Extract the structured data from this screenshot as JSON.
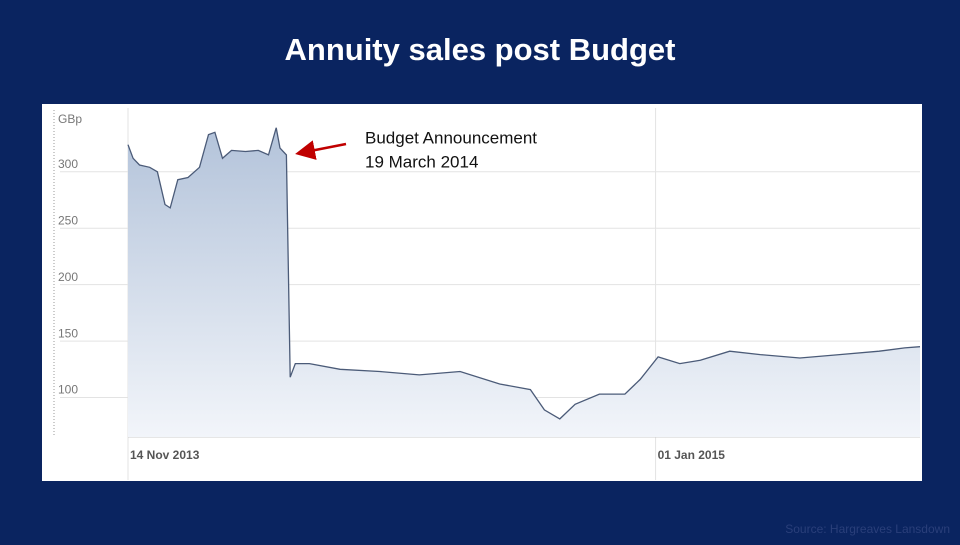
{
  "title": "Annuity sales post Budget",
  "source": "Source: Hargreaves Lansdown",
  "chart_data": {
    "type": "area",
    "y_label": "GBp",
    "annotation": [
      "Budget Announcement",
      "19 March 2014"
    ],
    "x": [
      "2013-11-14",
      "2013-11-18",
      "2013-11-23",
      "2013-12-01",
      "2013-12-07",
      "2013-12-13",
      "2013-12-17",
      "2013-12-23",
      "2013-12-31",
      "2014-01-09",
      "2014-01-16",
      "2014-01-21",
      "2014-01-27",
      "2014-02-03",
      "2014-02-14",
      "2014-02-24",
      "2014-03-04",
      "2014-03-10",
      "2014-03-13",
      "2014-03-18",
      "2014-03-21",
      "2014-03-25",
      "2014-04-05",
      "2014-04-29",
      "2014-05-30",
      "2014-06-30",
      "2014-08-01",
      "2014-09-01",
      "2014-09-25",
      "2014-10-06",
      "2014-10-18",
      "2014-10-30",
      "2014-11-18",
      "2014-12-08",
      "2014-12-20",
      "2015-01-03",
      "2015-01-20",
      "2015-02-05",
      "2015-02-28",
      "2015-03-24",
      "2015-04-24",
      "2015-05-25",
      "2015-06-25",
      "2015-07-15",
      "2015-07-27"
    ],
    "values": [
      324,
      312,
      306,
      304,
      300,
      271,
      268,
      293,
      295,
      304,
      333,
      335,
      312,
      319,
      318,
      319,
      315,
      339,
      321,
      315,
      118,
      130,
      130,
      125,
      123,
      120,
      123,
      112,
      107,
      89,
      81,
      94,
      103,
      103,
      116,
      136,
      130,
      133,
      141,
      138,
      135,
      138,
      141,
      144,
      145
    ],
    "color": "#4b5b78",
    "xlim": [
      "2013-11-14",
      "2015-07-27"
    ],
    "xticks": [
      {
        "value": "2013-11-14",
        "label": "14 Nov 2013"
      },
      {
        "value": "2015-01-01",
        "label": "01 Jan 2015"
      }
    ],
    "ylim": [
      65,
      353
    ],
    "yticks": [
      100,
      150,
      200,
      250,
      300
    ],
    "grid": true
  }
}
